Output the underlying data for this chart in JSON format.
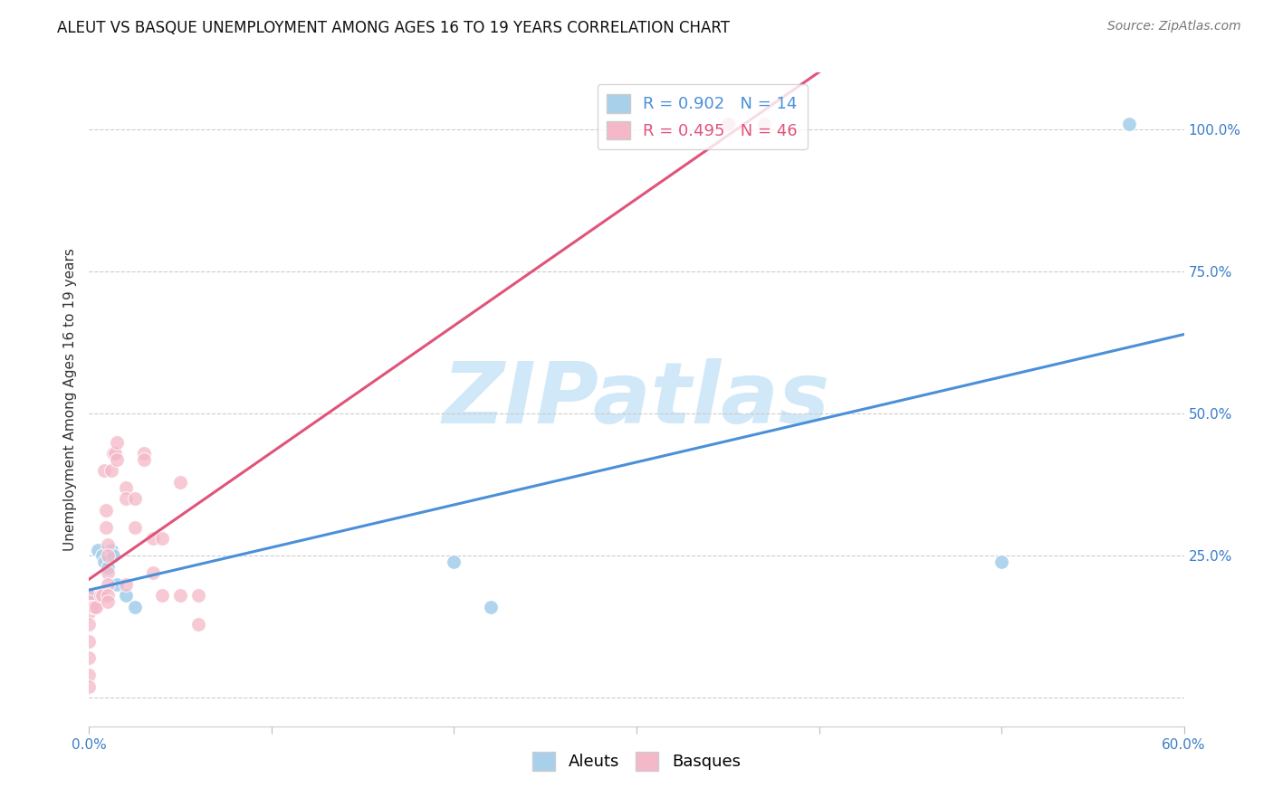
{
  "title": "ALEUT VS BASQUE UNEMPLOYMENT AMONG AGES 16 TO 19 YEARS CORRELATION CHART",
  "source": "Source: ZipAtlas.com",
  "ylabel": "Unemployment Among Ages 16 to 19 years",
  "xlim": [
    0.0,
    0.6
  ],
  "ylim": [
    -0.05,
    1.1
  ],
  "aleuts_color": "#a8d0eb",
  "basques_color": "#f4b8c8",
  "aleuts_line_color": "#4a90d9",
  "basques_line_color": "#e0547a",
  "aleuts_R": 0.902,
  "aleuts_N": 14,
  "basques_R": 0.495,
  "basques_N": 46,
  "watermark": "ZIPatlas",
  "watermark_color": "#d0e8f8",
  "aleuts_x": [
    0.0,
    0.005,
    0.007,
    0.008,
    0.01,
    0.012,
    0.013,
    0.015,
    0.02,
    0.025,
    0.2,
    0.22,
    0.5,
    0.57
  ],
  "aleuts_y": [
    0.18,
    0.26,
    0.25,
    0.24,
    0.23,
    0.26,
    0.25,
    0.2,
    0.18,
    0.16,
    0.24,
    0.16,
    0.24,
    1.01
  ],
  "basques_x": [
    0.0,
    0.0,
    0.0,
    0.0,
    0.0,
    0.0,
    0.0,
    0.0,
    0.0,
    0.002,
    0.003,
    0.004,
    0.006,
    0.007,
    0.008,
    0.009,
    0.009,
    0.01,
    0.01,
    0.01,
    0.01,
    0.01,
    0.01,
    0.012,
    0.013,
    0.014,
    0.015,
    0.015,
    0.02,
    0.02,
    0.02,
    0.025,
    0.025,
    0.03,
    0.03,
    0.035,
    0.035,
    0.04,
    0.04,
    0.05,
    0.05,
    0.06,
    0.06,
    0.35,
    0.35,
    0.37
  ],
  "basques_y": [
    0.18,
    0.17,
    0.16,
    0.15,
    0.13,
    0.1,
    0.07,
    0.04,
    0.02,
    0.16,
    0.16,
    0.16,
    0.18,
    0.18,
    0.4,
    0.33,
    0.3,
    0.27,
    0.25,
    0.22,
    0.2,
    0.18,
    0.17,
    0.4,
    0.43,
    0.43,
    0.42,
    0.45,
    0.37,
    0.35,
    0.2,
    0.35,
    0.3,
    0.43,
    0.42,
    0.28,
    0.22,
    0.28,
    0.18,
    0.38,
    0.18,
    0.18,
    0.13,
    1.01,
    1.01,
    1.01
  ],
  "title_fontsize": 12,
  "axis_label_fontsize": 11,
  "tick_fontsize": 11,
  "legend_fontsize": 13,
  "source_fontsize": 10
}
